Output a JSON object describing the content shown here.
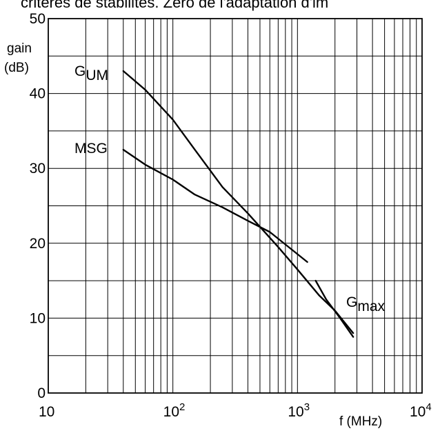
{
  "header_fragment": "critères de stabilités. Zéro de l'adaptation d'im",
  "chart_data": {
    "type": "line",
    "title": "",
    "ylabel_line1": "gain",
    "ylabel_line2": "(dB)",
    "xlabel": "f (MHz)",
    "xscale": "log",
    "xlim": [
      10,
      10000
    ],
    "ylim": [
      0,
      50
    ],
    "grid": true,
    "x_ticks": [
      {
        "base": "10",
        "exp": ""
      },
      {
        "base": "10",
        "exp": "2"
      },
      {
        "base": "10",
        "exp": "3"
      },
      {
        "base": "10",
        "exp": "4"
      }
    ],
    "y_ticks": [
      "0",
      "10",
      "20",
      "30",
      "40",
      "50"
    ],
    "series": [
      {
        "name": "GUM",
        "label_main": "G",
        "label_sub": "UM",
        "x": [
          40,
          60,
          100,
          150,
          250,
          400,
          700,
          1000,
          1500,
          2000,
          2800
        ],
        "y": [
          43,
          40.5,
          36.5,
          32.5,
          27.5,
          24,
          19.5,
          16.5,
          13,
          11,
          8
        ]
      },
      {
        "name": "MSG",
        "label_main": "MSG",
        "label_sub": "",
        "x": [
          40,
          60,
          100,
          150,
          250,
          400,
          600,
          1200
        ],
        "y": [
          32.5,
          30.5,
          28.5,
          26.5,
          24.8,
          23,
          21.5,
          17.5
        ]
      },
      {
        "name": "Gmax",
        "label_main": "G",
        "label_sub": "max",
        "x": [
          1400,
          1700,
          2200,
          2800
        ],
        "y": [
          15,
          12.5,
          10,
          7.5
        ]
      }
    ]
  }
}
